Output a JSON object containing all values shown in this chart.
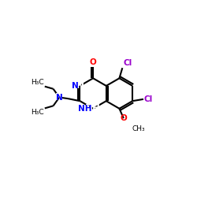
{
  "background": "#ffffff",
  "bond_color": "#000000",
  "n_color": "#0000ff",
  "o_color": "#ff0000",
  "cl_color": "#9900cc",
  "lw": 1.5,
  "fs": 7.5,
  "fs_small": 6.5,
  "ring_side": 25
}
